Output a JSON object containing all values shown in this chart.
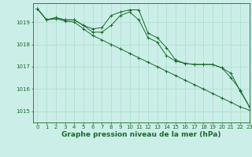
{
  "title": "Graphe pression niveau de la mer (hPa)",
  "bg_color": "#cceee8",
  "grid_color": "#aaddcc",
  "line_color": "#1a6b2a",
  "xlim": [
    -0.5,
    23
  ],
  "ylim": [
    1014.5,
    1019.85
  ],
  "yticks": [
    1015,
    1016,
    1017,
    1018,
    1019
  ],
  "xticks": [
    0,
    1,
    2,
    3,
    4,
    5,
    6,
    7,
    8,
    9,
    10,
    11,
    12,
    13,
    14,
    15,
    16,
    17,
    18,
    19,
    20,
    21,
    22,
    23
  ],
  "series": [
    [
      1019.6,
      1019.1,
      1019.2,
      1019.1,
      1019.1,
      1018.85,
      1018.7,
      1018.75,
      1019.3,
      1019.45,
      1019.55,
      1019.55,
      1018.5,
      1018.3,
      1017.85,
      1017.3,
      1017.15,
      1017.1,
      1017.1,
      1017.1,
      1016.95,
      1016.7,
      1015.9,
      1015.2
    ],
    [
      1019.6,
      1019.1,
      1019.2,
      1019.1,
      1019.1,
      1018.85,
      1018.55,
      1018.55,
      1018.85,
      1019.3,
      1019.45,
      1019.1,
      1018.3,
      1018.1,
      1017.5,
      1017.25,
      1017.15,
      1017.1,
      1017.1,
      1017.1,
      1016.95,
      1016.5,
      1015.95,
      1015.2
    ],
    [
      1019.6,
      1019.1,
      1019.15,
      1019.05,
      1019.0,
      1018.7,
      1018.4,
      1018.2,
      1018.0,
      1017.8,
      1017.6,
      1017.4,
      1017.2,
      1017.0,
      1016.8,
      1016.6,
      1016.4,
      1016.2,
      1016.0,
      1015.8,
      1015.6,
      1015.4,
      1015.2,
      1015.05
    ]
  ],
  "title_fontsize": 6.5,
  "tick_fontsize": 5.0
}
